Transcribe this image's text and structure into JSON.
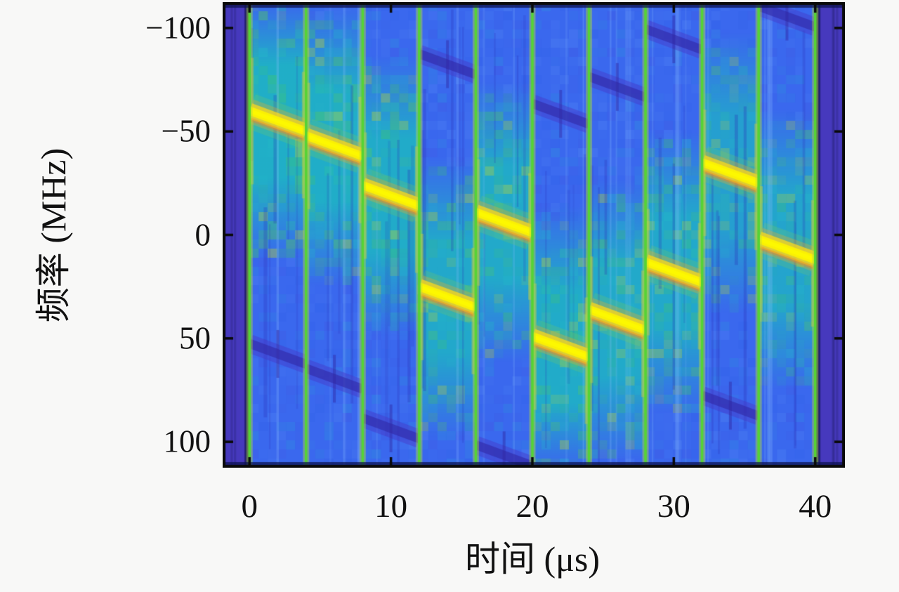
{
  "figure": {
    "xlabel": "时间 (μs)",
    "ylabel": "频率 (MHz)",
    "background_color": "#f8f8f7"
  },
  "chart_data": {
    "type": "heatmap",
    "subtype": "spectrogram-frequency-hopped-chirp-signal",
    "title": "",
    "xlabel": "时间 (μs)",
    "ylabel": "频率 (MHz)",
    "x_unit": "μs",
    "y_unit": "MHz",
    "x_range": [
      -1.9,
      42.1
    ],
    "y_range": [
      -112.5,
      112.5
    ],
    "y_axis_reversed": true,
    "grid": false,
    "legend": null,
    "x_ticks": [
      0,
      10,
      20,
      30,
      40
    ],
    "y_ticks": [
      -100,
      -50,
      0,
      50,
      100
    ],
    "x_tick_labels": [
      "0",
      "10",
      "20",
      "30",
      "40"
    ],
    "y_tick_labels": [
      "−100",
      "−50",
      "0",
      "50",
      "100"
    ],
    "hop_duration_us": 4,
    "num_hops": 10,
    "hop_boundaries_us": [
      0,
      4,
      8,
      12,
      16,
      20,
      24,
      28,
      32,
      36,
      40
    ],
    "out_of_band_regions_us": [
      [
        -1.9,
        0
      ],
      [
        40,
        42.1
      ]
    ],
    "hops": [
      {
        "t_start": 0,
        "t_end": 4,
        "f_center": -55,
        "f_start": -60,
        "f_end": -50,
        "leakage_level": 0.9
      },
      {
        "t_start": 4,
        "t_end": 8,
        "f_center": -43,
        "f_start": -48,
        "f_end": -38,
        "leakage_level": 0.85
      },
      {
        "t_start": 8,
        "t_end": 12,
        "f_center": -19,
        "f_start": -24,
        "f_end": -14,
        "leakage_level": 0.8
      },
      {
        "t_start": 12,
        "t_end": 16,
        "f_center": 30,
        "f_start": 25,
        "f_end": 35,
        "leakage_level": 0.7
      },
      {
        "t_start": 16,
        "t_end": 20,
        "f_center": -6,
        "f_start": -11,
        "f_end": -1,
        "leakage_level": 0.75
      },
      {
        "t_start": 20,
        "t_end": 24,
        "f_center": 54,
        "f_start": 49,
        "f_end": 59,
        "leakage_level": 0.8
      },
      {
        "t_start": 24,
        "t_end": 28,
        "f_center": 41,
        "f_start": 36,
        "f_end": 46,
        "leakage_level": 0.75
      },
      {
        "t_start": 28,
        "t_end": 32,
        "f_center": 18,
        "f_start": 13,
        "f_end": 23,
        "leakage_level": 0.7
      },
      {
        "t_start": 32,
        "t_end": 36,
        "f_center": -30,
        "f_start": -35,
        "f_end": -25,
        "leakage_level": 0.45
      },
      {
        "t_start": 36,
        "t_end": 40,
        "f_center": 7,
        "f_start": 2,
        "f_end": 12,
        "leakage_level": 0.6
      }
    ],
    "alias_notch_offset_mhz": 112.5,
    "colors": {
      "background": "#f8f8f7",
      "axis_color": "#0a0a0a",
      "out_of_band_indigo": "#4639bd",
      "low_level_blue": "#3a68ee",
      "mid_level_cyan": "#1fb2c6",
      "leakage_green": "#59c85e",
      "signal_yellow": "#f8f000",
      "signal_orange_fringe": "#f0a030",
      "hop_line_green": "#55d335",
      "alias_notch_indigo": "#4034b8"
    }
  }
}
